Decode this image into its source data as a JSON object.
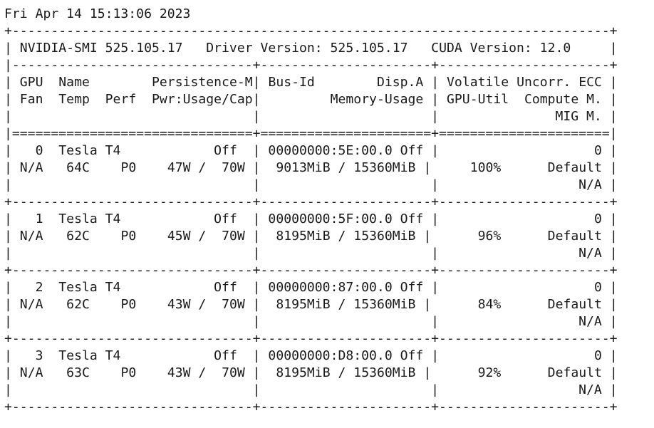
{
  "timestamp": "Fri Apr 14 15:13:06 2023",
  "header": {
    "smi_version": "NVIDIA-SMI 525.105.17",
    "driver_version": "Driver Version: 525.105.17",
    "cuda_version": "CUDA Version: 12.0"
  },
  "columns": {
    "row1": {
      "gpu": "GPU",
      "name": "Name",
      "persistence": "Persistence-M",
      "bus_id": "Bus-Id",
      "disp_a": "Disp.A",
      "volatile_ecc": "Volatile Uncorr. ECC"
    },
    "row2": {
      "fan": "Fan",
      "temp": "Temp",
      "perf": "Perf",
      "pwr": "Pwr:Usage/Cap",
      "memory_usage": "Memory-Usage",
      "gpu_util": "GPU-Util",
      "compute_m": "Compute M."
    },
    "row3": {
      "mig_m": "MIG M."
    }
  },
  "gpus": [
    {
      "index": "0",
      "name": "Tesla T4",
      "persistence": "Off",
      "bus_id": "00000000:5E:00.0",
      "disp_a": "Off",
      "ecc": "0",
      "fan": "N/A",
      "temp": "64C",
      "perf": "P0",
      "pwr_usage": "47W",
      "pwr_cap": "70W",
      "mem_used": "9013MiB",
      "mem_total": "15360MiB",
      "gpu_util": "100%",
      "compute_mode": "Default",
      "mig_mode": "N/A"
    },
    {
      "index": "1",
      "name": "Tesla T4",
      "persistence": "Off",
      "bus_id": "00000000:5F:00.0",
      "disp_a": "Off",
      "ecc": "0",
      "fan": "N/A",
      "temp": "62C",
      "perf": "P0",
      "pwr_usage": "45W",
      "pwr_cap": "70W",
      "mem_used": "8195MiB",
      "mem_total": "15360MiB",
      "gpu_util": "96%",
      "compute_mode": "Default",
      "mig_mode": "N/A"
    },
    {
      "index": "2",
      "name": "Tesla T4",
      "persistence": "Off",
      "bus_id": "00000000:87:00.0",
      "disp_a": "Off",
      "ecc": "0",
      "fan": "N/A",
      "temp": "62C",
      "perf": "P0",
      "pwr_usage": "43W",
      "pwr_cap": "70W",
      "mem_used": "8195MiB",
      "mem_total": "15360MiB",
      "gpu_util": "84%",
      "compute_mode": "Default",
      "mig_mode": "N/A"
    },
    {
      "index": "3",
      "name": "Tesla T4",
      "persistence": "Off",
      "bus_id": "00000000:D8:00.0",
      "disp_a": "Off",
      "ecc": "0",
      "fan": "N/A",
      "temp": "63C",
      "perf": "P0",
      "pwr_usage": "43W",
      "pwr_cap": "70W",
      "mem_used": "8195MiB",
      "mem_total": "15360MiB",
      "gpu_util": "92%",
      "compute_mode": "Default",
      "mig_mode": "N/A"
    }
  ]
}
